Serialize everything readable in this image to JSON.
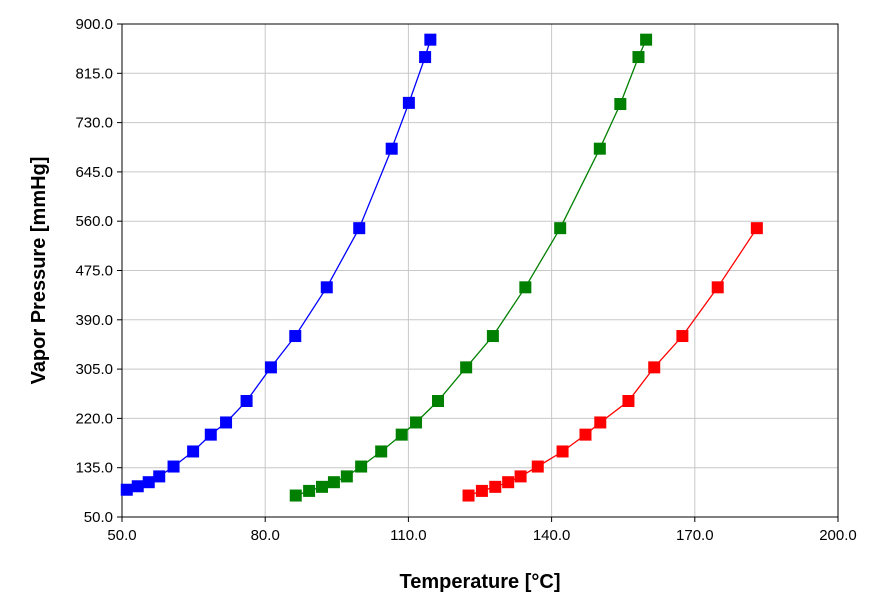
{
  "chart_data": {
    "type": "line",
    "title": "",
    "xlabel": "Temperature [°C]",
    "ylabel": "Vapor Pressure [mmHg]",
    "xlim": [
      50.0,
      200.0
    ],
    "ylim": [
      50.0,
      900.0
    ],
    "x_ticks": [
      50.0,
      80.0,
      110.0,
      140.0,
      170.0,
      200.0
    ],
    "x_tick_labels": [
      "50.0",
      "80.0",
      "110.0",
      "140.0",
      "170.0",
      "200.0"
    ],
    "y_ticks": [
      50.0,
      135.0,
      220.0,
      305.0,
      390.0,
      475.0,
      560.0,
      645.0,
      730.0,
      815.0,
      900.0
    ],
    "y_tick_labels": [
      "50.0",
      "135.0",
      "220.0",
      "305.0",
      "390.0",
      "475.0",
      "560.0",
      "645.0",
      "730.0",
      "815.0",
      "900.0"
    ],
    "grid": true,
    "legend": "none",
    "marker": "square",
    "series": [
      {
        "color": "#0000ff",
        "points": [
          [
            51.0,
            97
          ],
          [
            53.3,
            103
          ],
          [
            55.6,
            110
          ],
          [
            57.8,
            120
          ],
          [
            60.8,
            137
          ],
          [
            64.9,
            163
          ],
          [
            68.6,
            192
          ],
          [
            71.8,
            213
          ],
          [
            76.1,
            250
          ],
          [
            81.2,
            308
          ],
          [
            86.3,
            362
          ],
          [
            92.9,
            446
          ],
          [
            99.7,
            548
          ],
          [
            106.5,
            685
          ],
          [
            110.1,
            764
          ],
          [
            113.5,
            843
          ],
          [
            114.6,
            873
          ]
        ]
      },
      {
        "color": "#008000",
        "points": [
          [
            86.4,
            87
          ],
          [
            89.2,
            95
          ],
          [
            91.9,
            102
          ],
          [
            94.4,
            110
          ],
          [
            97.1,
            120
          ],
          [
            100.1,
            137
          ],
          [
            104.3,
            163
          ],
          [
            108.6,
            192
          ],
          [
            111.6,
            213
          ],
          [
            116.2,
            250
          ],
          [
            122.1,
            308
          ],
          [
            127.7,
            362
          ],
          [
            134.5,
            446
          ],
          [
            141.8,
            548
          ],
          [
            150.1,
            685
          ],
          [
            154.4,
            762
          ],
          [
            158.2,
            843
          ],
          [
            159.8,
            873
          ]
        ]
      },
      {
        "color": "#ff0000",
        "points": [
          [
            122.6,
            87
          ],
          [
            125.4,
            95
          ],
          [
            128.2,
            102
          ],
          [
            130.9,
            110
          ],
          [
            133.5,
            120
          ],
          [
            137.1,
            137
          ],
          [
            142.3,
            163
          ],
          [
            147.1,
            192
          ],
          [
            150.2,
            213
          ],
          [
            156.1,
            250
          ],
          [
            161.5,
            308
          ],
          [
            167.4,
            362
          ],
          [
            174.8,
            446
          ],
          [
            183.0,
            548
          ]
        ]
      }
    ]
  }
}
